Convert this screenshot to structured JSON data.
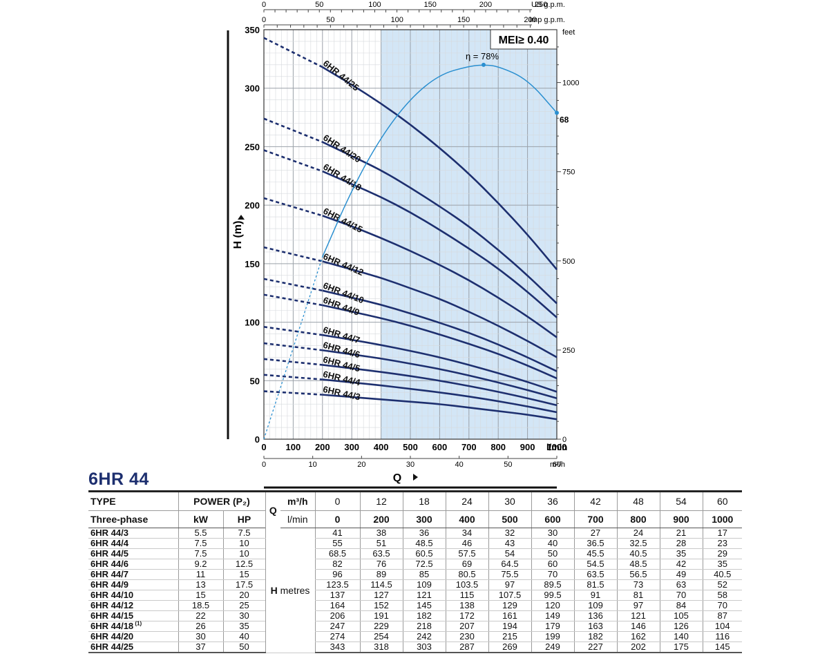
{
  "chart_data": {
    "type": "line",
    "title": "6HR 44",
    "xlabel": "Q",
    "ylabel": "H (m)",
    "xlim": [
      0,
      1000
    ],
    "ylim": [
      0,
      350
    ],
    "x_ticks": [
      0,
      100,
      200,
      300,
      400,
      500,
      600,
      700,
      800,
      900,
      1000
    ],
    "x_unit": "l/min",
    "y_ticks": [
      0,
      50,
      100,
      150,
      200,
      250,
      300,
      350
    ],
    "m3h_ticks": [
      "0",
      "10",
      "20",
      "30",
      "40",
      "50",
      "60"
    ],
    "m3h_unit": "m³/h",
    "usgpm_ticks": [
      "0",
      "50",
      "100",
      "150",
      "200",
      "250"
    ],
    "usgpm_unit": "US g.p.m.",
    "impgpm_ticks": [
      "0",
      "50",
      "100",
      "150",
      "200"
    ],
    "impgpm_unit": "Imp g.p.m.",
    "feet_ticks": [
      "0",
      "250",
      "500",
      "750",
      "1000"
    ],
    "feet_unit": "feet",
    "mei_label": "MEI≥ 0.40",
    "efficiency_peak_label": "η = 78%",
    "efficiency_end_label": "68",
    "efficiency_curve": {
      "name": "efficiency",
      "x": [
        0,
        200,
        300,
        400,
        500,
        600,
        700,
        750,
        800,
        900,
        1000
      ],
      "eff": [
        0,
        38,
        52,
        63,
        71,
        76,
        77.7,
        78,
        77.7,
        75,
        68
      ]
    },
    "recommended_range": [
      400,
      1000
    ],
    "x": [
      0,
      200,
      300,
      400,
      500,
      600,
      700,
      800,
      900,
      1000
    ],
    "series": [
      {
        "name": "6HR 44/3",
        "values": [
          41,
          38,
          36,
          34,
          32,
          30,
          27,
          24,
          21,
          17
        ]
      },
      {
        "name": "6HR 44/4",
        "values": [
          55,
          51,
          48.5,
          46,
          43,
          40,
          36.5,
          32.5,
          28,
          23
        ]
      },
      {
        "name": "6HR 44/5",
        "values": [
          68.5,
          63.5,
          60.5,
          57.5,
          54,
          50,
          45.5,
          40.5,
          35,
          29
        ]
      },
      {
        "name": "6HR 44/6",
        "values": [
          82,
          76,
          72.5,
          69,
          64.5,
          60,
          54.5,
          48.5,
          42,
          35
        ]
      },
      {
        "name": "6HR 44/7",
        "values": [
          96,
          89,
          85,
          80.5,
          75.5,
          70,
          63.5,
          56.5,
          49,
          40.5
        ]
      },
      {
        "name": "6HR 44/9",
        "values": [
          123.5,
          114.5,
          109,
          103.5,
          97,
          89.5,
          81.5,
          73,
          63,
          52
        ]
      },
      {
        "name": "6HR 44/10",
        "values": [
          137,
          127,
          121,
          115,
          107.5,
          99.5,
          91,
          81,
          70,
          58
        ]
      },
      {
        "name": "6HR 44/12",
        "values": [
          164,
          152,
          145,
          138,
          129,
          120,
          109,
          97,
          84,
          70
        ]
      },
      {
        "name": "6HR 44/15",
        "values": [
          206,
          191,
          182,
          172,
          161,
          149,
          136,
          121,
          105,
          87
        ]
      },
      {
        "name": "6HR 44/18",
        "values": [
          247,
          229,
          218,
          207,
          194,
          179,
          163,
          146,
          126,
          104
        ]
      },
      {
        "name": "6HR 44/20",
        "values": [
          274,
          254,
          242,
          230,
          215,
          199,
          182,
          162,
          140,
          116
        ]
      },
      {
        "name": "6HR 44/25",
        "values": [
          343,
          318,
          303,
          287,
          269,
          249,
          227,
          202,
          175,
          145
        ]
      }
    ]
  },
  "table": {
    "type_label": "TYPE",
    "phase_label": "Three-phase",
    "power_label": "POWER (P₂)",
    "kw_label": "kW",
    "hp_label": "HP",
    "q_label": "Q",
    "m3h_label": "m³/h",
    "lmin_label": "l/min",
    "h_label": "H",
    "h_unit": "metres",
    "m3h_values": [
      "0",
      "12",
      "18",
      "24",
      "30",
      "36",
      "42",
      "48",
      "54",
      "60"
    ],
    "lmin_values": [
      "0",
      "200",
      "300",
      "400",
      "500",
      "600",
      "700",
      "800",
      "900",
      "1000"
    ],
    "footnote_marker": "(1)",
    "rows": [
      {
        "type": "6HR 44/3",
        "kw": "5.5",
        "hp": "7.5",
        "h": [
          "41",
          "38",
          "36",
          "34",
          "32",
          "30",
          "27",
          "24",
          "21",
          "17"
        ]
      },
      {
        "type": "6HR 44/4",
        "kw": "7.5",
        "hp": "10",
        "h": [
          "55",
          "51",
          "48.5",
          "46",
          "43",
          "40",
          "36.5",
          "32.5",
          "28",
          "23"
        ]
      },
      {
        "type": "6HR 44/5",
        "kw": "7.5",
        "hp": "10",
        "h": [
          "68.5",
          "63.5",
          "60.5",
          "57.5",
          "54",
          "50",
          "45.5",
          "40.5",
          "35",
          "29"
        ]
      },
      {
        "type": "6HR 44/6",
        "kw": "9.2",
        "hp": "12.5",
        "h": [
          "82",
          "76",
          "72.5",
          "69",
          "64.5",
          "60",
          "54.5",
          "48.5",
          "42",
          "35"
        ]
      },
      {
        "type": "6HR 44/7",
        "kw": "11",
        "hp": "15",
        "h": [
          "96",
          "89",
          "85",
          "80.5",
          "75.5",
          "70",
          "63.5",
          "56.5",
          "49",
          "40.5"
        ]
      },
      {
        "type": "6HR 44/9",
        "kw": "13",
        "hp": "17.5",
        "h": [
          "123.5",
          "114.5",
          "109",
          "103.5",
          "97",
          "89.5",
          "81.5",
          "73",
          "63",
          "52"
        ]
      },
      {
        "type": "6HR 44/10",
        "kw": "15",
        "hp": "20",
        "h": [
          "137",
          "127",
          "121",
          "115",
          "107.5",
          "99.5",
          "91",
          "81",
          "70",
          "58"
        ]
      },
      {
        "type": "6HR 44/12",
        "kw": "18.5",
        "hp": "25",
        "h": [
          "164",
          "152",
          "145",
          "138",
          "129",
          "120",
          "109",
          "97",
          "84",
          "70"
        ]
      },
      {
        "type": "6HR 44/15",
        "kw": "22",
        "hp": "30",
        "h": [
          "206",
          "191",
          "182",
          "172",
          "161",
          "149",
          "136",
          "121",
          "105",
          "87"
        ]
      },
      {
        "type": "6HR 44/18",
        "kw": "26",
        "hp": "35",
        "h": [
          "247",
          "229",
          "218",
          "207",
          "194",
          "179",
          "163",
          "146",
          "126",
          "104"
        ]
      },
      {
        "type": "6HR 44/20",
        "kw": "30",
        "hp": "40",
        "h": [
          "274",
          "254",
          "242",
          "230",
          "215",
          "199",
          "182",
          "162",
          "140",
          "116"
        ]
      },
      {
        "type": "6HR 44/25",
        "kw": "37",
        "hp": "50",
        "h": [
          "343",
          "318",
          "303",
          "287",
          "269",
          "249",
          "227",
          "202",
          "175",
          "145"
        ]
      }
    ]
  }
}
